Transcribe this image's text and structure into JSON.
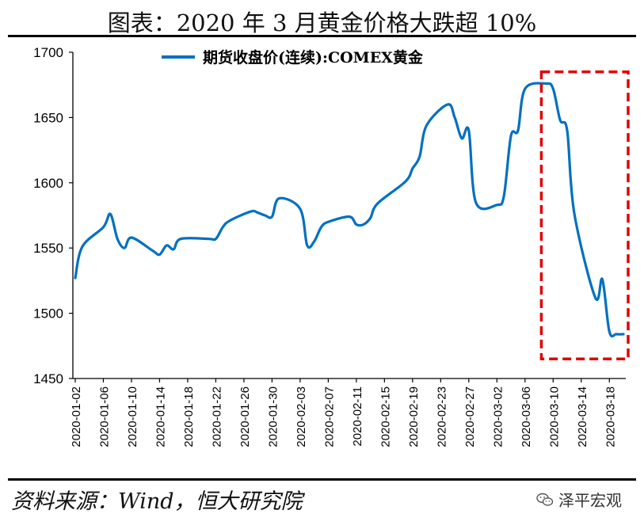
{
  "title": "图表：2020 年 3 月黄金价格大跌超 10%",
  "source": "资料来源：Wind，恒大研究院",
  "watermark": "泽平宏观",
  "watermark_icon": "wechat-logo-icon",
  "colors": {
    "line": "#0070C0",
    "highlight": "#E00000",
    "axis": "#000000"
  },
  "chart_data": {
    "type": "line",
    "title": "图表：2020 年 3 月黄金价格大跌超 10%",
    "xlabel": "",
    "ylabel": "",
    "ylim": [
      1450,
      1700
    ],
    "yticks": [
      1450,
      1500,
      1550,
      1600,
      1650,
      1700
    ],
    "xlim": [
      "2020-01-02",
      "2020-03-20"
    ],
    "xticks": [
      "2020-01-02",
      "2020-01-06",
      "2020-01-10",
      "2020-01-14",
      "2020-01-18",
      "2020-01-22",
      "2020-01-26",
      "2020-01-30",
      "2020-02-03",
      "2020-02-07",
      "2020-02-11",
      "2020-02-15",
      "2020-02-19",
      "2020-02-23",
      "2020-02-27",
      "2020-03-02",
      "2020-03-06",
      "2020-03-10",
      "2020-03-14",
      "2020-03-18"
    ],
    "grid": false,
    "legend": "top-center",
    "series": [
      {
        "name": "期货收盘价(连续):COMEX黄金",
        "points": [
          [
            "2020-01-02",
            1527
          ],
          [
            "2020-01-03",
            1551
          ],
          [
            "2020-01-06",
            1566
          ],
          [
            "2020-01-07",
            1576
          ],
          [
            "2020-01-08",
            1557
          ],
          [
            "2020-01-09",
            1550
          ],
          [
            "2020-01-10",
            1558
          ],
          [
            "2020-01-13",
            1548
          ],
          [
            "2020-01-14",
            1545
          ],
          [
            "2020-01-15",
            1552
          ],
          [
            "2020-01-16",
            1549
          ],
          [
            "2020-01-17",
            1557
          ],
          [
            "2020-01-21",
            1557
          ],
          [
            "2020-01-22",
            1557
          ],
          [
            "2020-01-23",
            1566
          ],
          [
            "2020-01-24",
            1571
          ],
          [
            "2020-01-27",
            1578
          ],
          [
            "2020-01-28",
            1577
          ],
          [
            "2020-01-29",
            1575
          ],
          [
            "2020-01-30",
            1574
          ],
          [
            "2020-01-31",
            1588
          ],
          [
            "2020-02-03",
            1580
          ],
          [
            "2020-02-04",
            1552
          ],
          [
            "2020-02-05",
            1555
          ],
          [
            "2020-02-06",
            1566
          ],
          [
            "2020-02-07",
            1570
          ],
          [
            "2020-02-10",
            1574
          ],
          [
            "2020-02-11",
            1568
          ],
          [
            "2020-02-12",
            1568
          ],
          [
            "2020-02-13",
            1573
          ],
          [
            "2020-02-14",
            1584
          ],
          [
            "2020-02-18",
            1601
          ],
          [
            "2020-02-19",
            1611
          ],
          [
            "2020-02-20",
            1620
          ],
          [
            "2020-02-21",
            1644
          ],
          [
            "2020-02-24",
            1660
          ],
          [
            "2020-02-25",
            1650
          ],
          [
            "2020-02-26",
            1634
          ],
          [
            "2020-02-27",
            1640
          ],
          [
            "2020-02-28",
            1585
          ],
          [
            "2020-03-02",
            1583
          ],
          [
            "2020-03-03",
            1590
          ],
          [
            "2020-03-04",
            1636
          ],
          [
            "2020-03-05",
            1640
          ],
          [
            "2020-03-06",
            1672
          ],
          [
            "2020-03-09",
            1676
          ],
          [
            "2020-03-10",
            1672
          ],
          [
            "2020-03-11",
            1648
          ],
          [
            "2020-03-12",
            1640
          ],
          [
            "2020-03-13",
            1577
          ],
          [
            "2020-03-16",
            1512
          ],
          [
            "2020-03-17",
            1526
          ],
          [
            "2020-03-18",
            1486
          ],
          [
            "2020-03-19",
            1484
          ],
          [
            "2020-03-20",
            1484
          ]
        ]
      }
    ],
    "annotations": [
      {
        "type": "dashed-box",
        "x_range": [
          "2020-03-09",
          "2020-03-20"
        ],
        "y_range": [
          1465,
          1685
        ],
        "color": "#E00000"
      }
    ]
  }
}
